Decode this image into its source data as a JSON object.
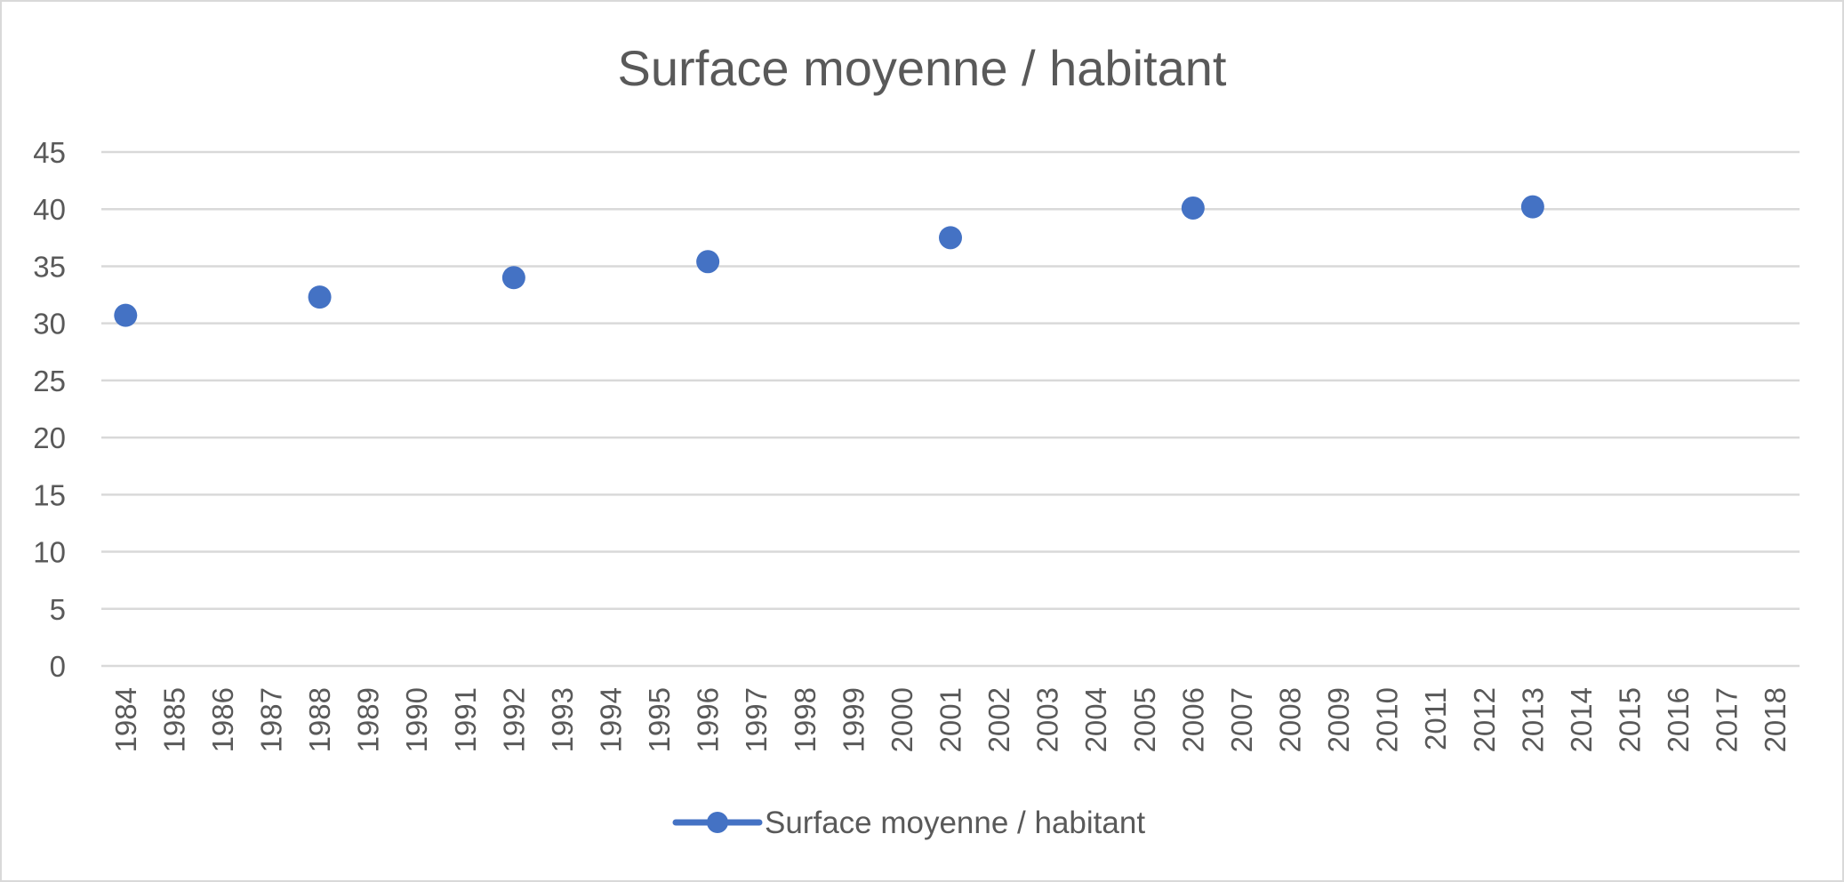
{
  "chart_data": {
    "type": "scatter",
    "title": "Surface moyenne / habitant",
    "xlabel": "",
    "ylabel": "",
    "x_categories": [
      "1984",
      "1985",
      "1986",
      "1987",
      "1988",
      "1989",
      "1990",
      "1991",
      "1992",
      "1993",
      "1994",
      "1995",
      "1996",
      "1997",
      "1998",
      "1999",
      "2000",
      "2001",
      "2002",
      "2003",
      "2004",
      "2005",
      "2006",
      "2007",
      "2008",
      "2009",
      "2010",
      "2011",
      "2012",
      "2013",
      "2014",
      "2015",
      "2016",
      "2017",
      "2018"
    ],
    "ylim": [
      0,
      45
    ],
    "y_ticks": [
      "0",
      "5",
      "10",
      "15",
      "20",
      "25",
      "30",
      "35",
      "40",
      "45"
    ],
    "grid": true,
    "legend_position": "bottom",
    "series": [
      {
        "name": "Surface moyenne / habitant",
        "color": "#4472c4",
        "points": [
          {
            "x": "1984",
            "y": 30.7
          },
          {
            "x": "1988",
            "y": 32.3
          },
          {
            "x": "1992",
            "y": 34.0
          },
          {
            "x": "1996",
            "y": 35.4
          },
          {
            "x": "2001",
            "y": 37.5
          },
          {
            "x": "2006",
            "y": 40.1
          },
          {
            "x": "2013",
            "y": 40.2
          }
        ]
      }
    ]
  }
}
